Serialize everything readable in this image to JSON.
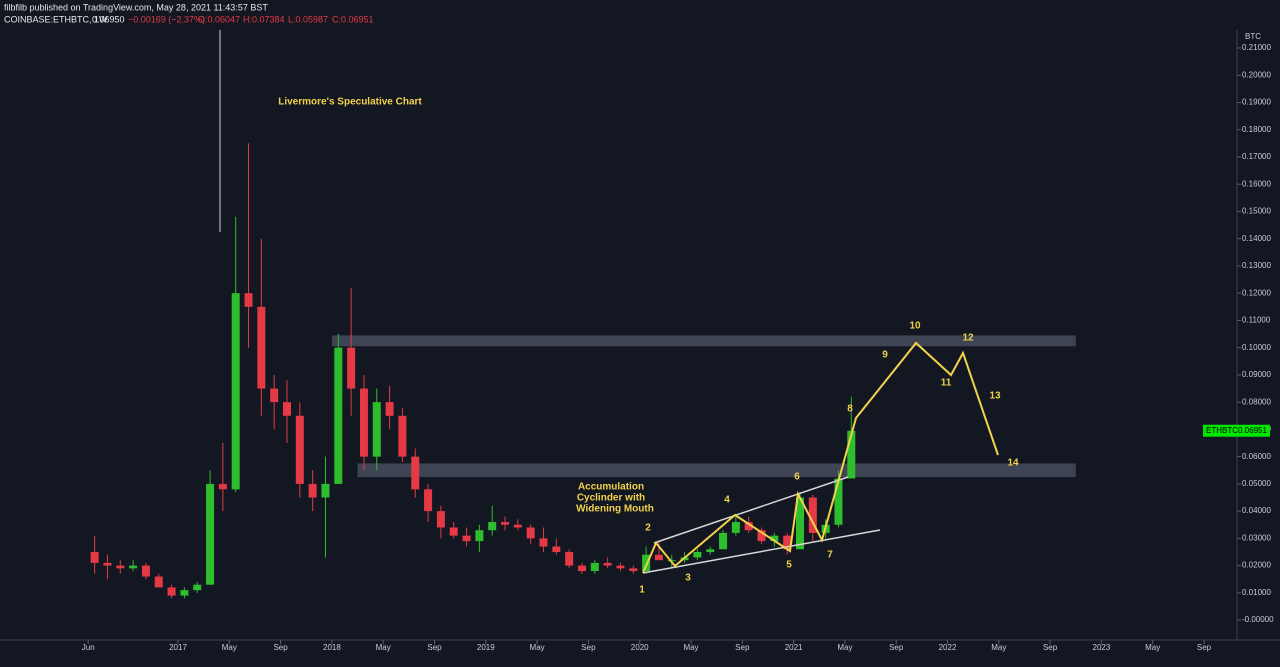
{
  "header": {
    "line1": "filbfilb published on TradingView.com, May 28, 2021 11:43:57 BST",
    "symbol": "COINBASE:ETHBTC, 1W",
    "last": "0.06950",
    "change": "−0.00169 (−2.37%)",
    "open": "O:0.06047",
    "high": "H:0.07384",
    "low": "L:0.05987",
    "close": "C:0.06951"
  },
  "chart_data": {
    "type": "candlestick",
    "axis_unit": "BTC",
    "annotation": "Livermore's Speculative Chart",
    "note_lines": [
      "Accumulation",
      "Cyclinder with",
      "Widening Mouth"
    ],
    "wave_labels": [
      "1",
      "2",
      "3",
      "4",
      "5",
      "6",
      "7",
      "8",
      "9",
      "10",
      "11",
      "12",
      "13",
      "14"
    ],
    "price_label": {
      "symbol": "ETHBTC",
      "value": 0.06951,
      "color": "#00e600"
    },
    "up_color": "#2dbd2d",
    "down_color": "#e53946",
    "zone_color": "#4a5060",
    "zones": [
      {
        "from": "2018-01",
        "to": "2022-11",
        "low": 0.1005,
        "high": 0.1045
      },
      {
        "from": "2018-03",
        "to": "2022-11",
        "low": 0.0525,
        "high": 0.0575
      }
    ],
    "x": [
      "2016-06",
      "2016-07",
      "2016-08",
      "2016-09",
      "2016-10",
      "2016-11",
      "2016-12",
      "2017-01",
      "2017-02",
      "2017-03",
      "2017-04",
      "2017-05",
      "2017-06",
      "2017-07",
      "2017-08",
      "2017-09",
      "2017-10",
      "2017-11",
      "2017-12",
      "2018-01",
      "2018-02",
      "2018-03",
      "2018-04",
      "2018-05",
      "2018-06",
      "2018-07",
      "2018-08",
      "2018-09",
      "2018-10",
      "2018-11",
      "2018-12",
      "2019-01",
      "2019-02",
      "2019-03",
      "2019-04",
      "2019-05",
      "2019-06",
      "2019-07",
      "2019-08",
      "2019-09",
      "2019-10",
      "2019-11",
      "2019-12",
      "2020-01",
      "2020-02",
      "2020-03",
      "2020-04",
      "2020-05",
      "2020-06",
      "2020-07",
      "2020-08",
      "2020-09",
      "2020-10",
      "2020-11",
      "2020-12",
      "2021-01",
      "2021-02",
      "2021-03",
      "2021-04",
      "2021-05"
    ],
    "open": [
      0.025,
      0.021,
      0.02,
      0.019,
      0.02,
      0.016,
      0.012,
      0.009,
      0.011,
      0.013,
      0.05,
      0.048,
      0.12,
      0.115,
      0.085,
      0.08,
      0.075,
      0.05,
      0.045,
      0.05,
      0.1,
      0.085,
      0.06,
      0.08,
      0.075,
      0.06,
      0.048,
      0.04,
      0.034,
      0.031,
      0.029,
      0.033,
      0.036,
      0.035,
      0.034,
      0.03,
      0.027,
      0.025,
      0.02,
      0.018,
      0.021,
      0.02,
      0.019,
      0.018,
      0.024,
      0.022,
      0.022,
      0.023,
      0.025,
      0.026,
      0.032,
      0.036,
      0.033,
      0.029,
      0.031,
      0.026,
      0.045,
      0.032,
      0.035,
      0.052
    ],
    "high": [
      0.031,
      0.024,
      0.022,
      0.022,
      0.021,
      0.017,
      0.013,
      0.012,
      0.014,
      0.055,
      0.065,
      0.148,
      0.175,
      0.14,
      0.09,
      0.088,
      0.08,
      0.055,
      0.06,
      0.105,
      0.122,
      0.09,
      0.085,
      0.086,
      0.078,
      0.063,
      0.05,
      0.042,
      0.036,
      0.034,
      0.035,
      0.042,
      0.038,
      0.037,
      0.035,
      0.034,
      0.03,
      0.026,
      0.021,
      0.022,
      0.023,
      0.021,
      0.02,
      0.027,
      0.029,
      0.024,
      0.025,
      0.026,
      0.027,
      0.033,
      0.038,
      0.038,
      0.034,
      0.032,
      0.032,
      0.047,
      0.046,
      0.037,
      0.055,
      0.082
    ],
    "low": [
      0.017,
      0.015,
      0.017,
      0.018,
      0.015,
      0.012,
      0.008,
      0.008,
      0.01,
      0.013,
      0.04,
      0.047,
      0.1,
      0.075,
      0.07,
      0.065,
      0.045,
      0.04,
      0.023,
      0.05,
      0.075,
      0.055,
      0.055,
      0.07,
      0.058,
      0.045,
      0.036,
      0.03,
      0.03,
      0.027,
      0.025,
      0.031,
      0.033,
      0.033,
      0.028,
      0.025,
      0.024,
      0.019,
      0.017,
      0.017,
      0.019,
      0.018,
      0.017,
      0.017,
      0.022,
      0.019,
      0.021,
      0.022,
      0.024,
      0.026,
      0.031,
      0.032,
      0.028,
      0.027,
      0.024,
      0.026,
      0.029,
      0.03,
      0.034,
      0.052
    ],
    "close": [
      0.021,
      0.02,
      0.019,
      0.02,
      0.016,
      0.012,
      0.009,
      0.011,
      0.013,
      0.05,
      0.048,
      0.12,
      0.115,
      0.085,
      0.08,
      0.075,
      0.05,
      0.045,
      0.05,
      0.1,
      0.085,
      0.06,
      0.08,
      0.075,
      0.06,
      0.048,
      0.04,
      0.034,
      0.031,
      0.029,
      0.033,
      0.036,
      0.035,
      0.034,
      0.03,
      0.027,
      0.025,
      0.02,
      0.018,
      0.021,
      0.02,
      0.019,
      0.018,
      0.024,
      0.022,
      0.022,
      0.023,
      0.025,
      0.026,
      0.032,
      0.036,
      0.033,
      0.029,
      0.031,
      0.026,
      0.045,
      0.032,
      0.035,
      0.052,
      0.0695
    ],
    "ylim": [
      -0.0073,
      0.2166
    ],
    "yticks": [
      {
        "value": 0.21,
        "label": "0.21000"
      },
      {
        "value": 0.2,
        "label": "0.20000"
      },
      {
        "value": 0.19,
        "label": "0.19000"
      },
      {
        "value": 0.18,
        "label": "0.18000"
      },
      {
        "value": 0.17,
        "label": "0.17000"
      },
      {
        "value": 0.16,
        "label": "0.16000"
      },
      {
        "value": 0.15,
        "label": "0.15000"
      },
      {
        "value": 0.14,
        "label": "0.14000"
      },
      {
        "value": 0.13,
        "label": "0.13000"
      },
      {
        "value": 0.12,
        "label": "0.12000"
      },
      {
        "value": 0.11,
        "label": "0.11000"
      },
      {
        "value": 0.1,
        "label": "0.10000"
      },
      {
        "value": 0.09,
        "label": "0.09000"
      },
      {
        "value": 0.08,
        "label": "0.08000"
      },
      {
        "value": 0.07,
        "label": "0.07000"
      },
      {
        "value": 0.06,
        "label": "0.06000"
      },
      {
        "value": 0.05,
        "label": "0.05000"
      },
      {
        "value": 0.04,
        "label": "0.04000"
      },
      {
        "value": 0.03,
        "label": "0.03000"
      },
      {
        "value": 0.02,
        "label": "0.02000"
      },
      {
        "value": 0.01,
        "label": "0.01000"
      },
      {
        "value": 0,
        "label": "-0.00000"
      }
    ],
    "xticks": [
      {
        "value": "2016-06",
        "label": "Jun"
      },
      {
        "value": "2017-01",
        "label": "2017"
      },
      {
        "value": "2017-05",
        "label": "May"
      },
      {
        "value": "2017-09",
        "label": "Sep"
      },
      {
        "value": "2018-01",
        "label": "2018"
      },
      {
        "value": "2018-05",
        "label": "May"
      },
      {
        "value": "2018-09",
        "label": "Sep"
      },
      {
        "value": "2019-01",
        "label": "2019"
      },
      {
        "value": "2019-05",
        "label": "May"
      },
      {
        "value": "2019-09",
        "label": "Sep"
      },
      {
        "value": "2020-01",
        "label": "2020"
      },
      {
        "value": "2020-05",
        "label": "May"
      },
      {
        "value": "2020-09",
        "label": "Sep"
      },
      {
        "value": "2021-01",
        "label": "2021"
      },
      {
        "value": "2021-05",
        "label": "May"
      },
      {
        "value": "2021-09",
        "label": "Sep"
      },
      {
        "value": "2022-01",
        "label": "2022"
      },
      {
        "value": "2022-05",
        "label": "May"
      },
      {
        "value": "2022-09",
        "label": "Sep"
      },
      {
        "value": "2023-01",
        "label": "2023"
      },
      {
        "value": "2023-05",
        "label": "May"
      },
      {
        "value": "2023-09",
        "label": "Sep"
      }
    ]
  }
}
